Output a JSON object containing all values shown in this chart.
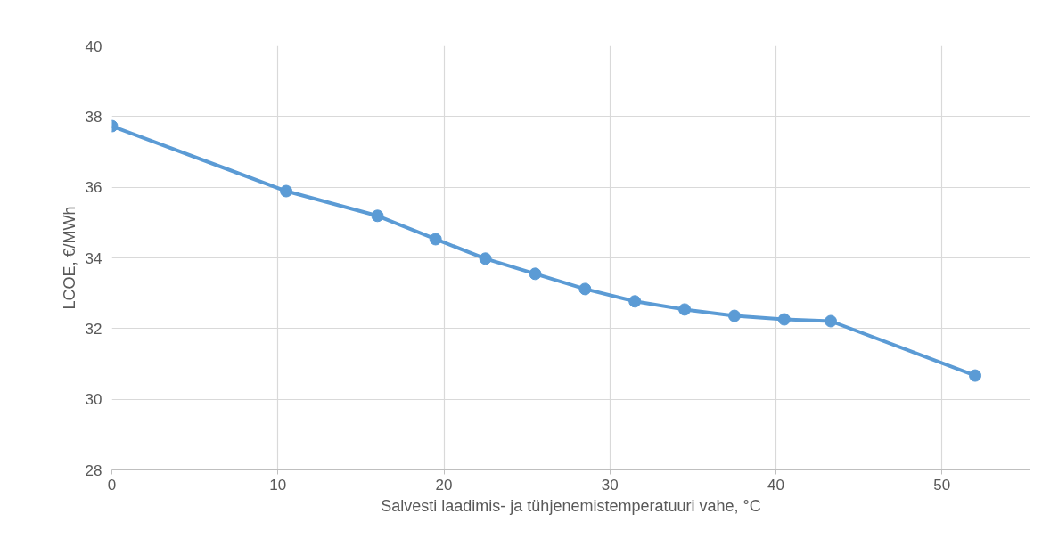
{
  "chart_data": {
    "type": "line",
    "xlabel": "Salvesti laadimis- ja tühjenemistemperatuuri vahe, °C",
    "ylabel": "LCOE, €/MWh",
    "x": [
      0,
      10.5,
      16,
      19.5,
      22.5,
      25.5,
      28.5,
      31.5,
      34.5,
      37.5,
      40.5,
      43.3,
      52
    ],
    "series": [
      {
        "color": "#5b9bd5",
        "values": [
          37.73,
          35.89,
          35.19,
          34.53,
          33.98,
          33.55,
          33.12,
          32.77,
          32.54,
          32.36,
          32.26,
          32.21,
          30.67
        ]
      }
    ],
    "xlim": [
      0,
      55.3
    ],
    "ylim": [
      28,
      40
    ],
    "xticks": [
      0,
      10,
      20,
      30,
      40,
      50
    ],
    "yticks": [
      28,
      30,
      32,
      34,
      36,
      38,
      40
    ],
    "grid": true,
    "marker": "circle",
    "line_style": "solid"
  }
}
